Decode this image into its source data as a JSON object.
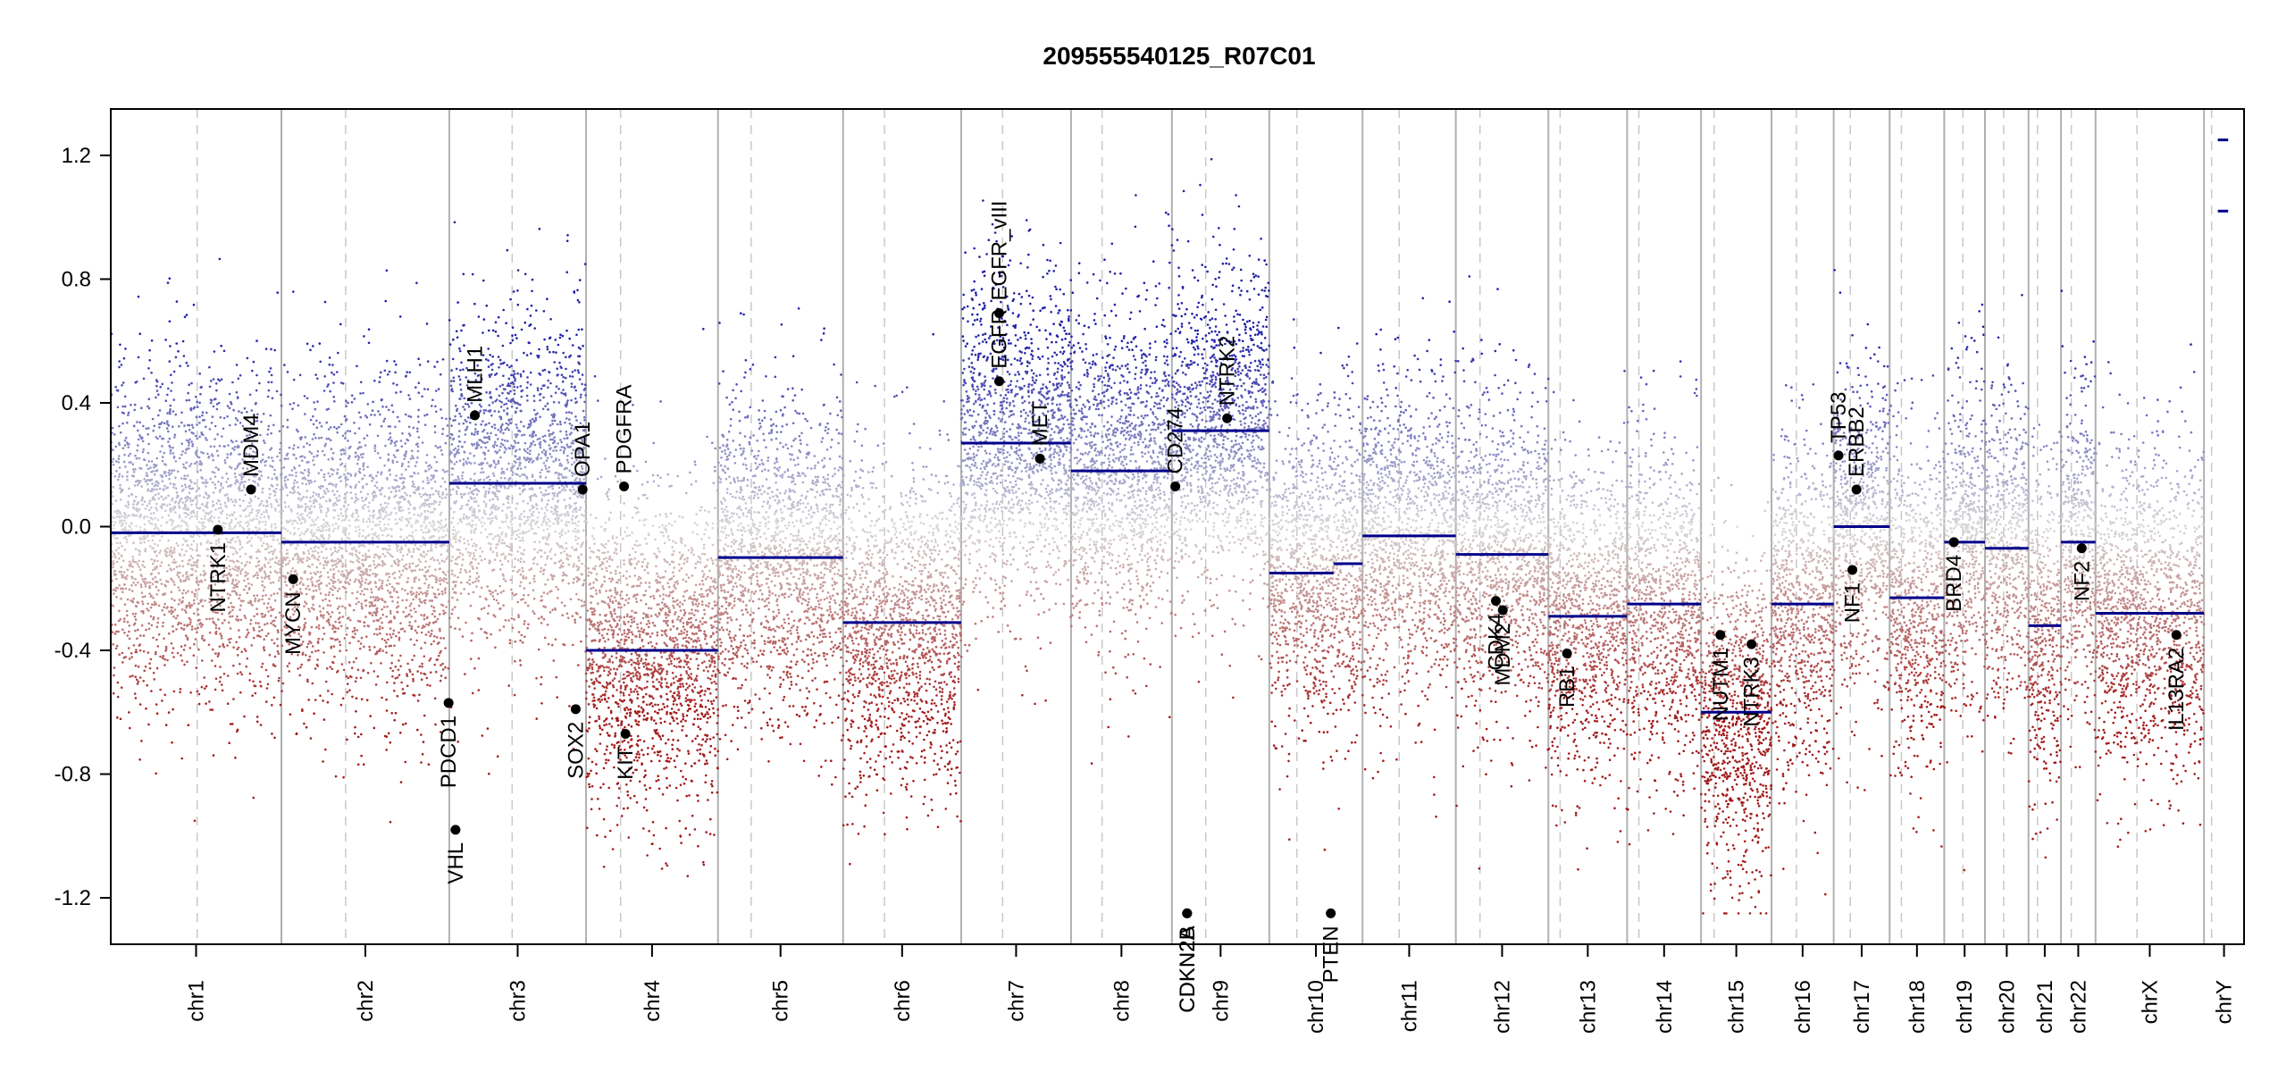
{
  "chart_data": {
    "type": "scatter",
    "title": "209555540125_R07C01",
    "xlabel": "",
    "ylabel": "",
    "ylim": [
      -1.35,
      1.35
    ],
    "yticks": [
      -1.2,
      -0.8,
      -0.4,
      0.0,
      0.4,
      0.8,
      1.2
    ],
    "ytick_labels": [
      "-1.2",
      "-0.8",
      "-0.4",
      "0.0",
      "0.4",
      "0.8",
      "1.2"
    ],
    "grid": false,
    "colors": {
      "high": "#1f1fa8",
      "mid": "#d8d8d8",
      "low": "#a31a1a",
      "segment": "#00008b",
      "boundary": "#b0b0b0"
    },
    "chromosomes": [
      {
        "name": "chr1",
        "start": 0,
        "end": 247,
        "centromere": 125
      },
      {
        "name": "chr2",
        "start": 247,
        "end": 490,
        "centromere": 93
      },
      {
        "name": "chr3",
        "start": 490,
        "end": 688,
        "centromere": 91
      },
      {
        "name": "chr4",
        "start": 688,
        "end": 879,
        "centromere": 50
      },
      {
        "name": "chr5",
        "start": 879,
        "end": 1060,
        "centromere": 48
      },
      {
        "name": "chr6",
        "start": 1060,
        "end": 1231,
        "centromere": 60
      },
      {
        "name": "chr7",
        "start": 1231,
        "end": 1390,
        "centromere": 60
      },
      {
        "name": "chr8",
        "start": 1390,
        "end": 1536,
        "centromere": 45
      },
      {
        "name": "chr9",
        "start": 1536,
        "end": 1677,
        "centromere": 49
      },
      {
        "name": "chr10",
        "start": 1677,
        "end": 1812,
        "centromere": 40
      },
      {
        "name": "chr11",
        "start": 1812,
        "end": 1947,
        "centromere": 53
      },
      {
        "name": "chr12",
        "start": 1947,
        "end": 2081,
        "centromere": 35
      },
      {
        "name": "chr13",
        "start": 2081,
        "end": 2195,
        "centromere": 17
      },
      {
        "name": "chr14",
        "start": 2195,
        "end": 2302,
        "centromere": 17
      },
      {
        "name": "chr15",
        "start": 2302,
        "end": 2404,
        "centromere": 19
      },
      {
        "name": "chr16",
        "start": 2404,
        "end": 2494,
        "centromere": 36
      },
      {
        "name": "chr17",
        "start": 2494,
        "end": 2575,
        "centromere": 24
      },
      {
        "name": "chr18",
        "start": 2575,
        "end": 2654,
        "centromere": 17
      },
      {
        "name": "chr19",
        "start": 2654,
        "end": 2713,
        "centromere": 27
      },
      {
        "name": "chr20",
        "start": 2713,
        "end": 2776,
        "centromere": 27
      },
      {
        "name": "chr21",
        "start": 2776,
        "end": 2823,
        "centromere": 13
      },
      {
        "name": "chr22",
        "start": 2823,
        "end": 2873,
        "centromere": 15
      },
      {
        "name": "chrX",
        "start": 2873,
        "end": 3030,
        "centromere": 60
      },
      {
        "name": "chrY",
        "start": 3030,
        "end": 3088,
        "centromere": 11
      }
    ],
    "segments": [
      {
        "x0": 0,
        "x1": 247,
        "y": -0.02
      },
      {
        "x0": 247,
        "x1": 490,
        "y": -0.05
      },
      {
        "x0": 490,
        "x1": 688,
        "y": 0.14
      },
      {
        "x0": 688,
        "x1": 879,
        "y": -0.4
      },
      {
        "x0": 879,
        "x1": 1060,
        "y": -0.1
      },
      {
        "x0": 1060,
        "x1": 1231,
        "y": -0.31
      },
      {
        "x0": 1231,
        "x1": 1390,
        "y": 0.27
      },
      {
        "x0": 1390,
        "x1": 1536,
        "y": 0.18
      },
      {
        "x0": 1536,
        "x1": 1677,
        "y": 0.31
      },
      {
        "x0": 1677,
        "x1": 1770,
        "y": -0.15
      },
      {
        "x0": 1770,
        "x1": 1812,
        "y": -0.12
      },
      {
        "x0": 1812,
        "x1": 1947,
        "y": -0.03
      },
      {
        "x0": 1947,
        "x1": 2081,
        "y": -0.09
      },
      {
        "x0": 2081,
        "x1": 2195,
        "y": -0.29
      },
      {
        "x0": 2195,
        "x1": 2302,
        "y": -0.25
      },
      {
        "x0": 2302,
        "x1": 2404,
        "y": -0.6
      },
      {
        "x0": 2404,
        "x1": 2494,
        "y": -0.25
      },
      {
        "x0": 2494,
        "x1": 2575,
        "y": 0.0
      },
      {
        "x0": 2575,
        "x1": 2654,
        "y": -0.23
      },
      {
        "x0": 2654,
        "x1": 2713,
        "y": -0.05
      },
      {
        "x0": 2713,
        "x1": 2776,
        "y": -0.07
      },
      {
        "x0": 2776,
        "x1": 2823,
        "y": -0.32
      },
      {
        "x0": 2823,
        "x1": 2873,
        "y": -0.05
      },
      {
        "x0": 2873,
        "x1": 3030,
        "y": -0.28
      },
      {
        "x0": 3050,
        "x1": 3065,
        "y": 1.25
      },
      {
        "x0": 3050,
        "x1": 3065,
        "y": 1.02
      }
    ],
    "genes": [
      {
        "name": "NTRK1",
        "x": 155,
        "y": -0.01,
        "side": "below"
      },
      {
        "name": "MDM4",
        "x": 203,
        "y": 0.12,
        "side": "above"
      },
      {
        "name": "MYCN",
        "x": 264,
        "y": -0.17,
        "side": "below"
      },
      {
        "name": "PDCD1",
        "x": 489,
        "y": -0.57,
        "side": "below"
      },
      {
        "name": "VHL",
        "x": 499,
        "y": -0.98,
        "side": "below"
      },
      {
        "name": "MLH1",
        "x": 527,
        "y": 0.36,
        "side": "above"
      },
      {
        "name": "SOX2",
        "x": 673,
        "y": -0.59,
        "side": "below"
      },
      {
        "name": "OPA1",
        "x": 683,
        "y": 0.12,
        "side": "above"
      },
      {
        "name": "PDGFRA",
        "x": 743,
        "y": 0.13,
        "side": "above"
      },
      {
        "name": "KIT",
        "x": 745,
        "y": -0.67,
        "side": "below"
      },
      {
        "name": "EGFR",
        "x": 1286,
        "y": 0.47,
        "side": "above"
      },
      {
        "name": "EGFR_vIII",
        "x": 1286,
        "y": 0.69,
        "side": "above"
      },
      {
        "name": "MET",
        "x": 1345,
        "y": 0.22,
        "side": "above"
      },
      {
        "name": "CD274",
        "x": 1541,
        "y": 0.13,
        "side": "above"
      },
      {
        "name": "CDKN2A",
        "x": 1558,
        "y": -1.25,
        "side": "below"
      },
      {
        "name": "CDKN2B",
        "x": 1558,
        "y": -1.25,
        "side": "below"
      },
      {
        "name": "NTRK2",
        "x": 1616,
        "y": 0.35,
        "side": "above"
      },
      {
        "name": "PTEN",
        "x": 1766,
        "y": -1.25,
        "side": "below"
      },
      {
        "name": "CDK4",
        "x": 2005,
        "y": -0.24,
        "side": "below"
      },
      {
        "name": "MDM2",
        "x": 2015,
        "y": -0.27,
        "side": "below"
      },
      {
        "name": "RB1",
        "x": 2108,
        "y": -0.41,
        "side": "below"
      },
      {
        "name": "NUTM1",
        "x": 2330,
        "y": -0.35,
        "side": "below"
      },
      {
        "name": "NTRK3",
        "x": 2375,
        "y": -0.38,
        "side": "below"
      },
      {
        "name": "TP53",
        "x": 2501,
        "y": 0.23,
        "side": "above"
      },
      {
        "name": "ERBB2",
        "x": 2527,
        "y": 0.12,
        "side": "above"
      },
      {
        "name": "NF1",
        "x": 2521,
        "y": -0.14,
        "side": "below"
      },
      {
        "name": "BRD4",
        "x": 2668,
        "y": -0.05,
        "side": "below"
      },
      {
        "name": "NF2",
        "x": 2853,
        "y": -0.07,
        "side": "below"
      },
      {
        "name": "IL13RA2",
        "x": 2990,
        "y": -0.35,
        "side": "below"
      }
    ]
  }
}
